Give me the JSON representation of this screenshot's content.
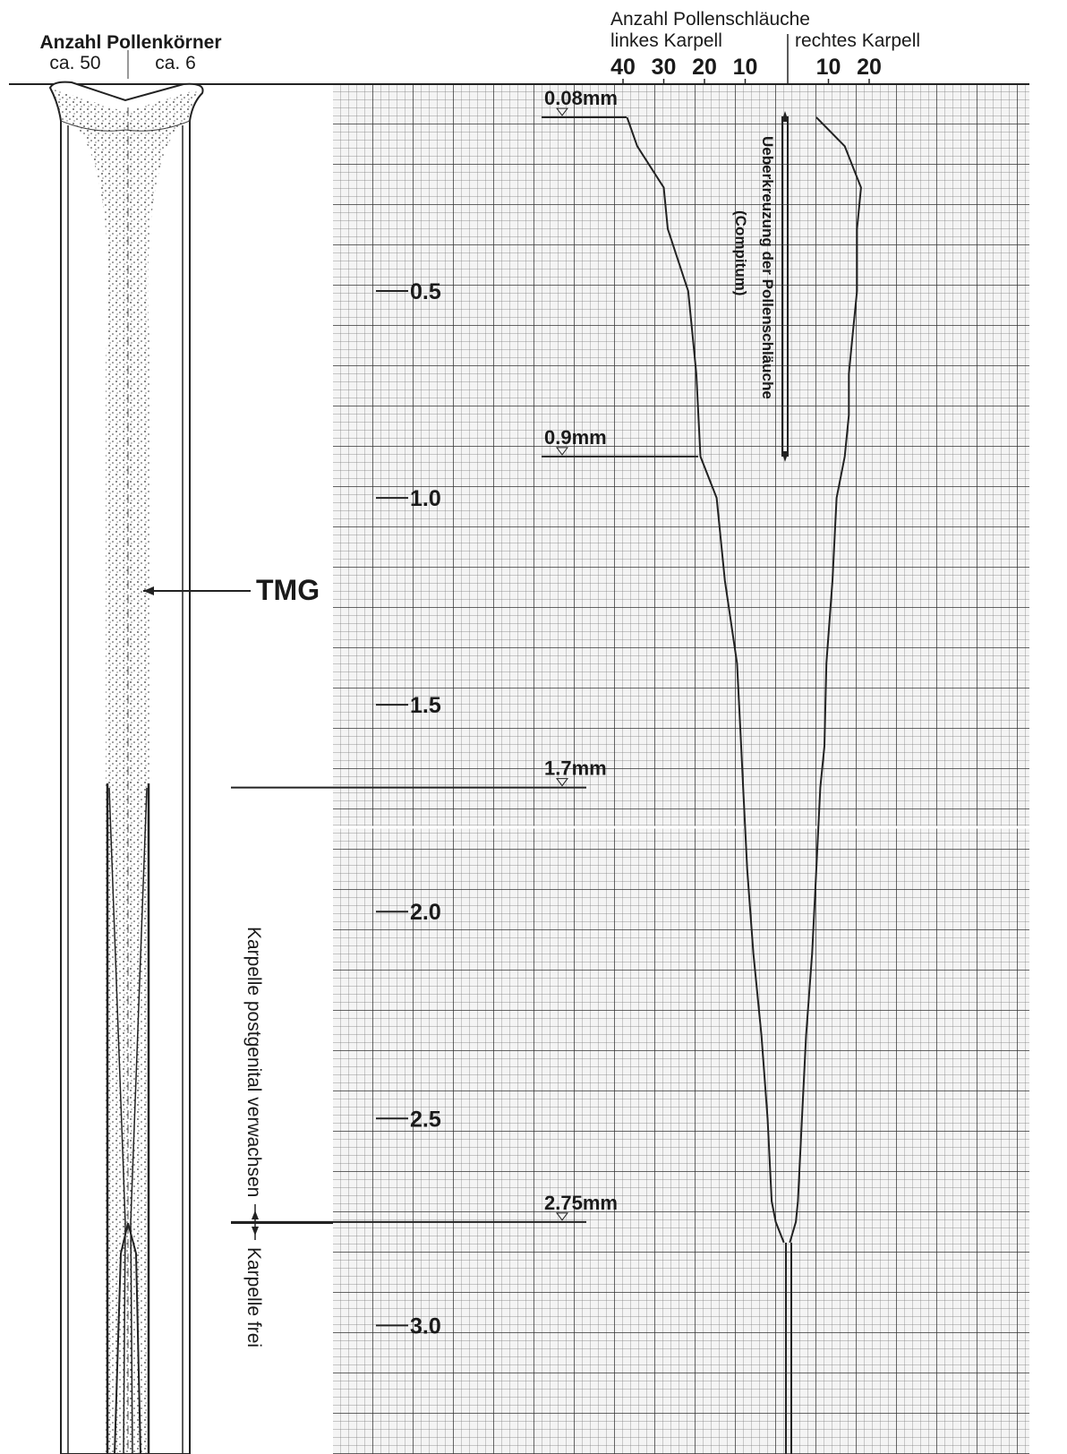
{
  "figure": {
    "left_header": {
      "title": "Anzahl Pollenkörner",
      "left": "ca. 50",
      "right": "ca. 6"
    },
    "tmg_label": "TMG",
    "fused_label": "Karpelle postgenital verwachsen",
    "free_label": "Karpelle frei",
    "compitum_label": "Ueberkreuzung der Pollenschläuche",
    "compitum_sub": "(Compitum)"
  },
  "chart_data": {
    "type": "line",
    "title": "Anzahl Pollenschläuche",
    "x": [
      0.08,
      0.15,
      0.25,
      0.35,
      0.5,
      0.6,
      0.7,
      0.8,
      0.9,
      1.0,
      1.2,
      1.4,
      1.6,
      1.7,
      1.9,
      2.1,
      2.3,
      2.5,
      2.7,
      2.75,
      2.8
    ],
    "xlim": [
      0,
      3.3
    ],
    "xticks": [
      0.5,
      {
        "value": 1,
        "label": "1.0"
      },
      1.5,
      {
        "value": 2,
        "label": "2.0"
      },
      2.5,
      {
        "value": 3,
        "label": "3.0"
      }
    ],
    "ylim": [
      0,
      40
    ],
    "yticks": [
      40,
      30,
      20,
      10
    ],
    "y2lim": [
      0,
      20
    ],
    "y2ticks": [
      10,
      20
    ],
    "series": [
      {
        "name": "linkes Karpell",
        "color": "#222222",
        "values": [
          39,
          36.5,
          30,
          29,
          24,
          23,
          22,
          21.5,
          21,
          17,
          15,
          12,
          11,
          10.5,
          9.5,
          8,
          6,
          4.5,
          3.5,
          2.5,
          0.5
        ]
      },
      {
        "name": "rechtes Karpell",
        "color": "#222222",
        "axis": "y2",
        "values": [
          7,
          14,
          18,
          17,
          17,
          16,
          15,
          15,
          14,
          12,
          11,
          9.5,
          9,
          8,
          7,
          6,
          4.5,
          3.5,
          2.5,
          2,
          0.5
        ]
      }
    ],
    "markers": [
      {
        "value": 0.08,
        "label": "0.08mm"
      },
      {
        "value": 0.9,
        "label": "0.9mm"
      },
      {
        "value": 1.7,
        "label": "1.7mm"
      },
      {
        "value": 2.75,
        "label": "2.75mm"
      }
    ],
    "grid": true
  }
}
